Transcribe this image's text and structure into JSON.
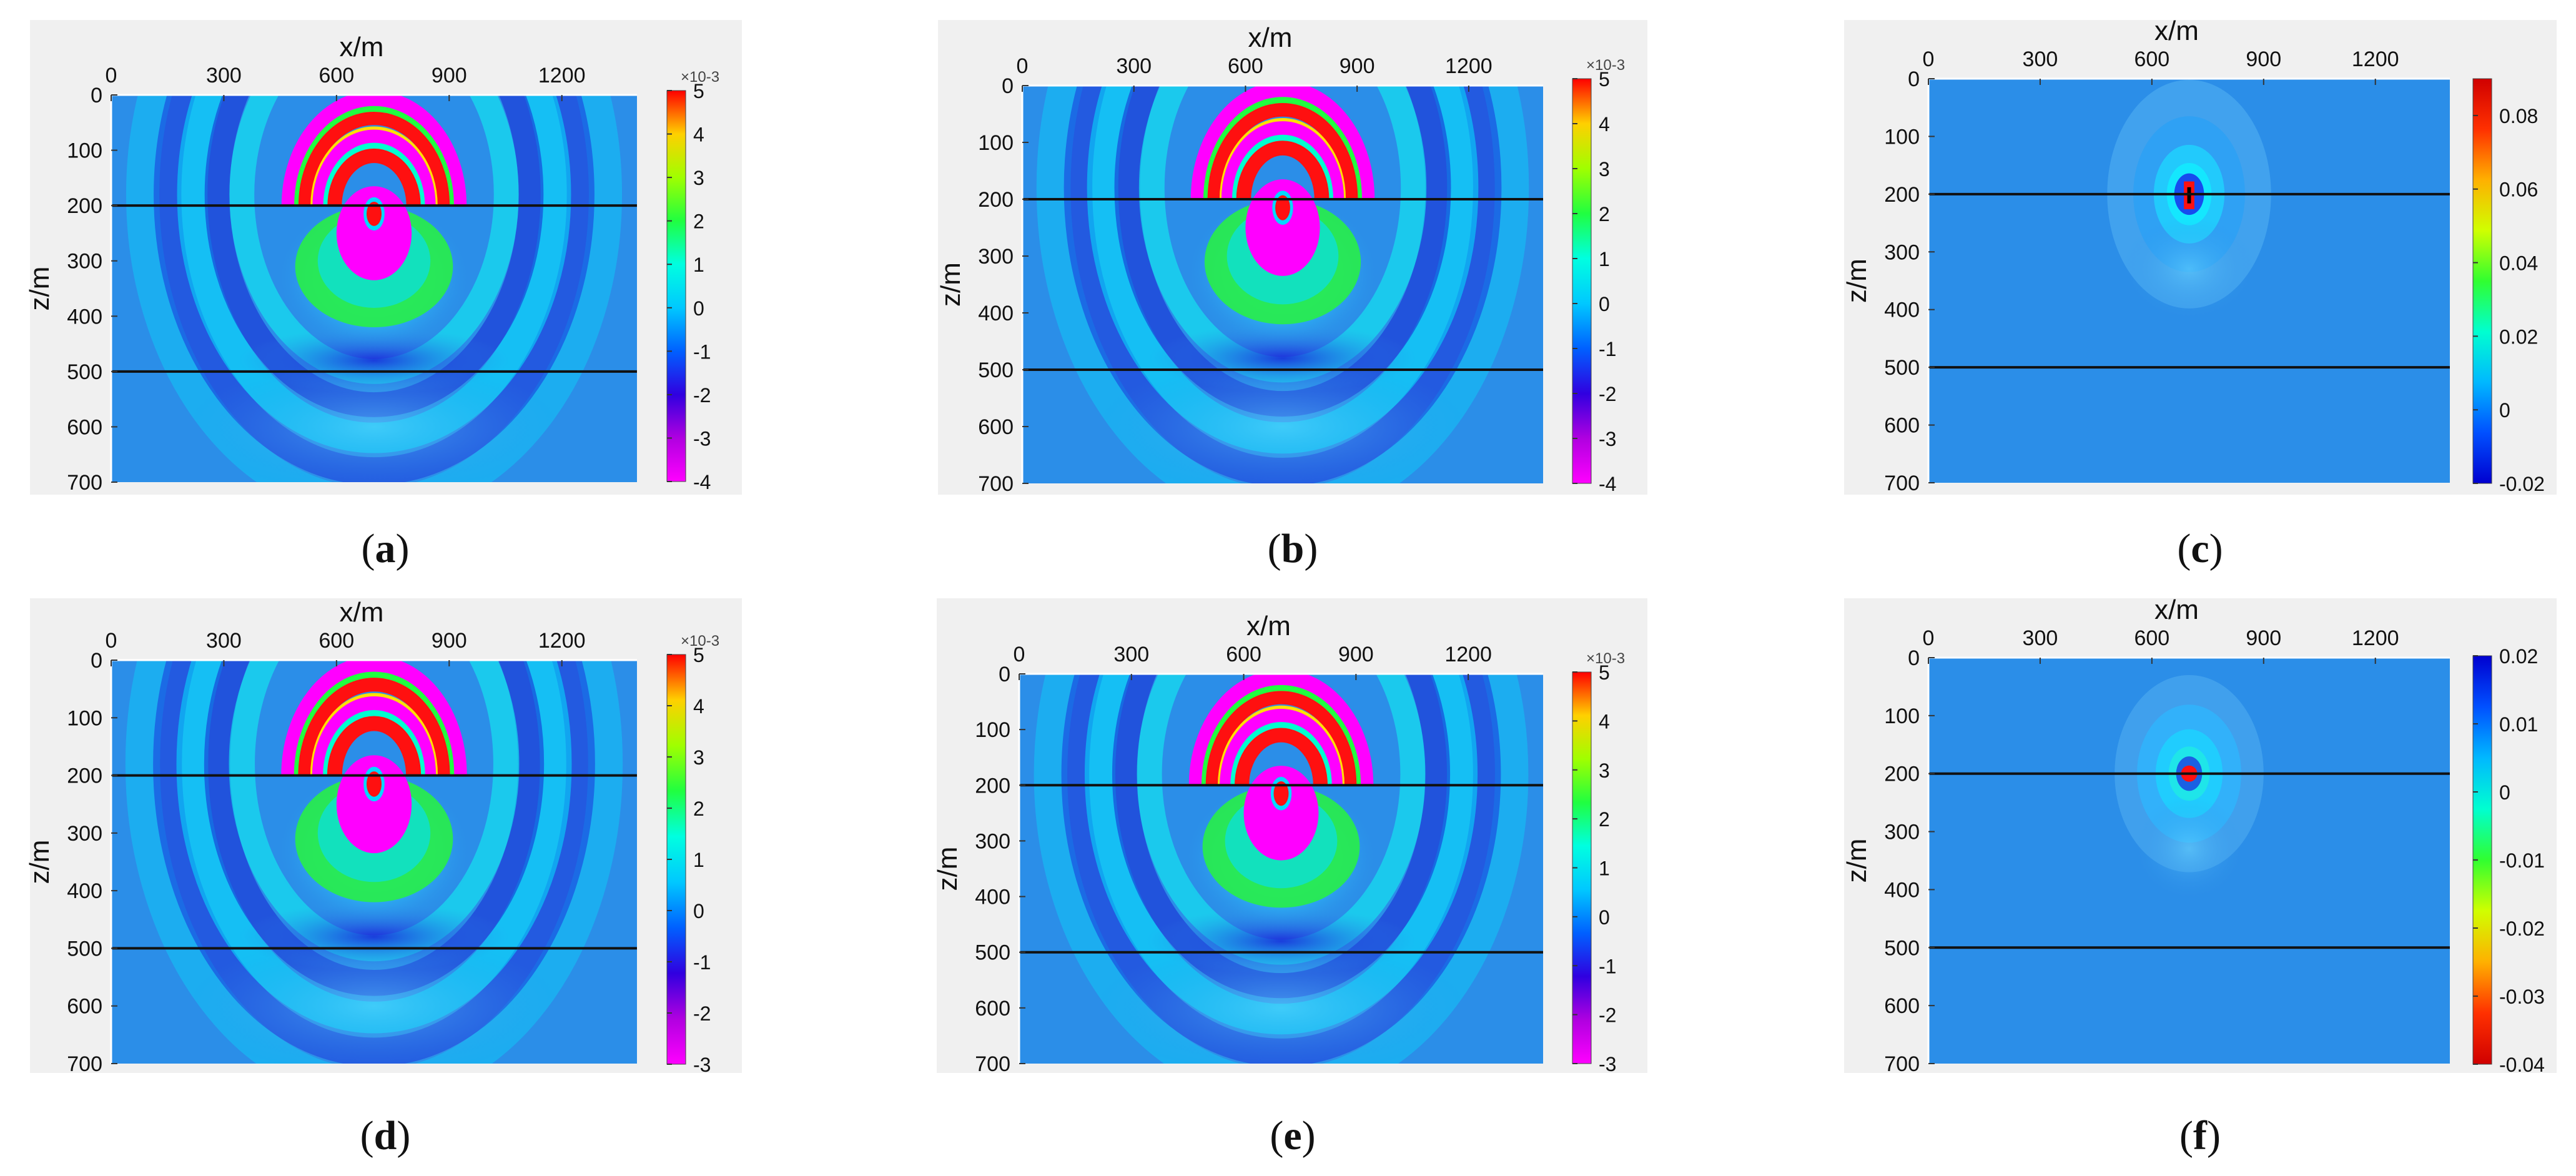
{
  "chart_data": [
    {
      "id": "a",
      "type": "heatmap",
      "label_letter": "a",
      "xlabel": "x/m",
      "ylabel": "z/m",
      "xticks": [
        0,
        300,
        600,
        900,
        1200
      ],
      "yticks": [
        0,
        100,
        200,
        300,
        400,
        500,
        600,
        700
      ],
      "xlim": [
        0,
        1400
      ],
      "ylim": [
        0,
        700
      ],
      "layer_depths": [
        200,
        500
      ],
      "source": {
        "x": 700,
        "z": 200
      },
      "colorbar": {
        "colormap": "jet_inverted",
        "exponent": "×10^-3",
        "exponent_display": "×10-3",
        "ticks": [
          "5",
          "4",
          "3",
          "2",
          "1",
          "0",
          "-1",
          "-2",
          "-3",
          "-4"
        ],
        "range": [
          -4,
          5
        ]
      },
      "field": "wave"
    },
    {
      "id": "b",
      "type": "heatmap",
      "label_letter": "b",
      "xlabel": "x/m",
      "ylabel": "z/m",
      "xticks": [
        0,
        300,
        600,
        900,
        1200
      ],
      "yticks": [
        0,
        100,
        200,
        300,
        400,
        500,
        600,
        700
      ],
      "xlim": [
        0,
        1400
      ],
      "ylim": [
        0,
        700
      ],
      "layer_depths": [
        200,
        500
      ],
      "source": {
        "x": 700,
        "z": 200
      },
      "colorbar": {
        "colormap": "jet_inverted",
        "exponent": "×10^-3",
        "exponent_display": "×10-3",
        "ticks": [
          "5",
          "4",
          "3",
          "2",
          "1",
          "0",
          "-1",
          "-2",
          "-3",
          "-4"
        ],
        "range": [
          -4,
          5
        ]
      },
      "field": "wave"
    },
    {
      "id": "c",
      "type": "heatmap",
      "label_letter": "c",
      "xlabel": "x/m",
      "ylabel": "z/m",
      "xticks": [
        0,
        300,
        600,
        900,
        1200
      ],
      "yticks": [
        0,
        100,
        200,
        300,
        400,
        500,
        600,
        700
      ],
      "xlim": [
        0,
        1400
      ],
      "ylim": [
        0,
        700
      ],
      "layer_depths": [
        200,
        500
      ],
      "source": {
        "x": 700,
        "z": 200
      },
      "colorbar": {
        "colormap": "jet",
        "exponent": "",
        "ticks": [
          "0.08",
          "0.06",
          "0.04",
          "0.02",
          "0",
          "-0.02"
        ],
        "range": [
          -0.02,
          0.09
        ]
      },
      "field": "residual"
    },
    {
      "id": "d",
      "type": "heatmap",
      "label_letter": "d",
      "xlabel": "x/m",
      "ylabel": "z/m",
      "xticks": [
        0,
        300,
        600,
        900,
        1200
      ],
      "yticks": [
        0,
        100,
        200,
        300,
        400,
        500,
        600,
        700
      ],
      "xlim": [
        0,
        1400
      ],
      "ylim": [
        0,
        700
      ],
      "layer_depths": [
        200,
        500
      ],
      "source": {
        "x": 700,
        "z": 200
      },
      "colorbar": {
        "colormap": "jet_inverted",
        "exponent": "×10^-3",
        "exponent_display": "×10-3",
        "ticks": [
          "5",
          "4",
          "3",
          "2",
          "1",
          "0",
          "-1",
          "-2",
          "-3"
        ],
        "range": [
          -3,
          5
        ]
      },
      "field": "wave"
    },
    {
      "id": "e",
      "type": "heatmap",
      "label_letter": "e",
      "xlabel": "x/m",
      "ylabel": "z/m",
      "xticks": [
        0,
        300,
        600,
        900,
        1200
      ],
      "yticks": [
        0,
        100,
        200,
        300,
        400,
        500,
        600,
        700
      ],
      "xlim": [
        0,
        1400
      ],
      "ylim": [
        0,
        700
      ],
      "layer_depths": [
        200,
        500
      ],
      "source": {
        "x": 700,
        "z": 200
      },
      "colorbar": {
        "colormap": "jet_inverted",
        "exponent": "×10^-3",
        "exponent_display": "×10-3",
        "ticks": [
          "5",
          "4",
          "3",
          "2",
          "1",
          "0",
          "-1",
          "-2",
          "-3"
        ],
        "range": [
          -3,
          5
        ]
      },
      "field": "wave"
    },
    {
      "id": "f",
      "type": "heatmap",
      "label_letter": "f",
      "xlabel": "x/m",
      "ylabel": "z/m",
      "xticks": [
        0,
        300,
        600,
        900,
        1200
      ],
      "yticks": [
        0,
        100,
        200,
        300,
        400,
        500,
        600,
        700
      ],
      "xlim": [
        0,
        1400
      ],
      "ylim": [
        0,
        700
      ],
      "layer_depths": [
        200,
        500
      ],
      "source": {
        "x": 700,
        "z": 200
      },
      "colorbar": {
        "colormap": "jet_reversed",
        "exponent": "",
        "ticks": [
          "0.02",
          "0.01",
          "0",
          "-0.01",
          "-0.02",
          "-0.03",
          "-0.04"
        ],
        "range": [
          -0.04,
          0.02
        ]
      },
      "field": "residual_small"
    }
  ],
  "colors": {
    "panel_background": "#f0f0f0",
    "field_background": "#2b8ee8",
    "layer_line": "#111111",
    "text": "#111111"
  }
}
